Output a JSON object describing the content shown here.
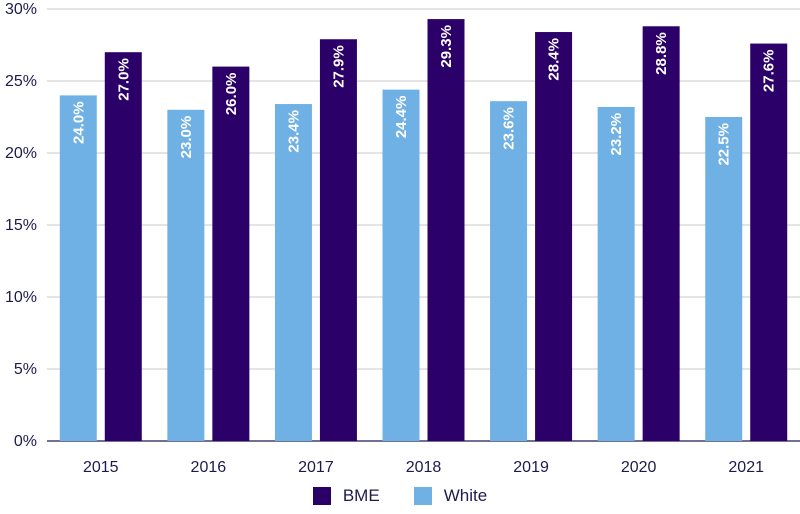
{
  "chart_data": {
    "type": "bar",
    "categories": [
      "2015",
      "2016",
      "2017",
      "2018",
      "2019",
      "2020",
      "2021"
    ],
    "series": [
      {
        "name": "White",
        "color": "#6fb1e4",
        "values": [
          24.0,
          23.0,
          23.4,
          24.4,
          23.6,
          23.2,
          22.5
        ],
        "labels": [
          "24.0%",
          "23.0%",
          "23.4%",
          "24.4%",
          "23.6%",
          "23.2%",
          "22.5%"
        ]
      },
      {
        "name": "BME",
        "color": "#2b0068",
        "values": [
          27.0,
          26.0,
          27.9,
          29.3,
          28.4,
          28.8,
          27.6
        ],
        "labels": [
          "27.0%",
          "26.0%",
          "27.9%",
          "29.3%",
          "28.4%",
          "28.8%",
          "27.6%"
        ]
      }
    ],
    "ylim": [
      0,
      30
    ],
    "y_ticks": [
      0,
      5,
      10,
      15,
      20,
      25,
      30
    ],
    "y_tick_labels": [
      "0%",
      "5%",
      "10%",
      "15%",
      "20%",
      "25%",
      "30%"
    ],
    "grid": true,
    "legend_position": "bottom-center",
    "legend": [
      {
        "label": "BME",
        "color": "#2b0068"
      },
      {
        "label": "White",
        "color": "#6fb1e4"
      }
    ]
  }
}
